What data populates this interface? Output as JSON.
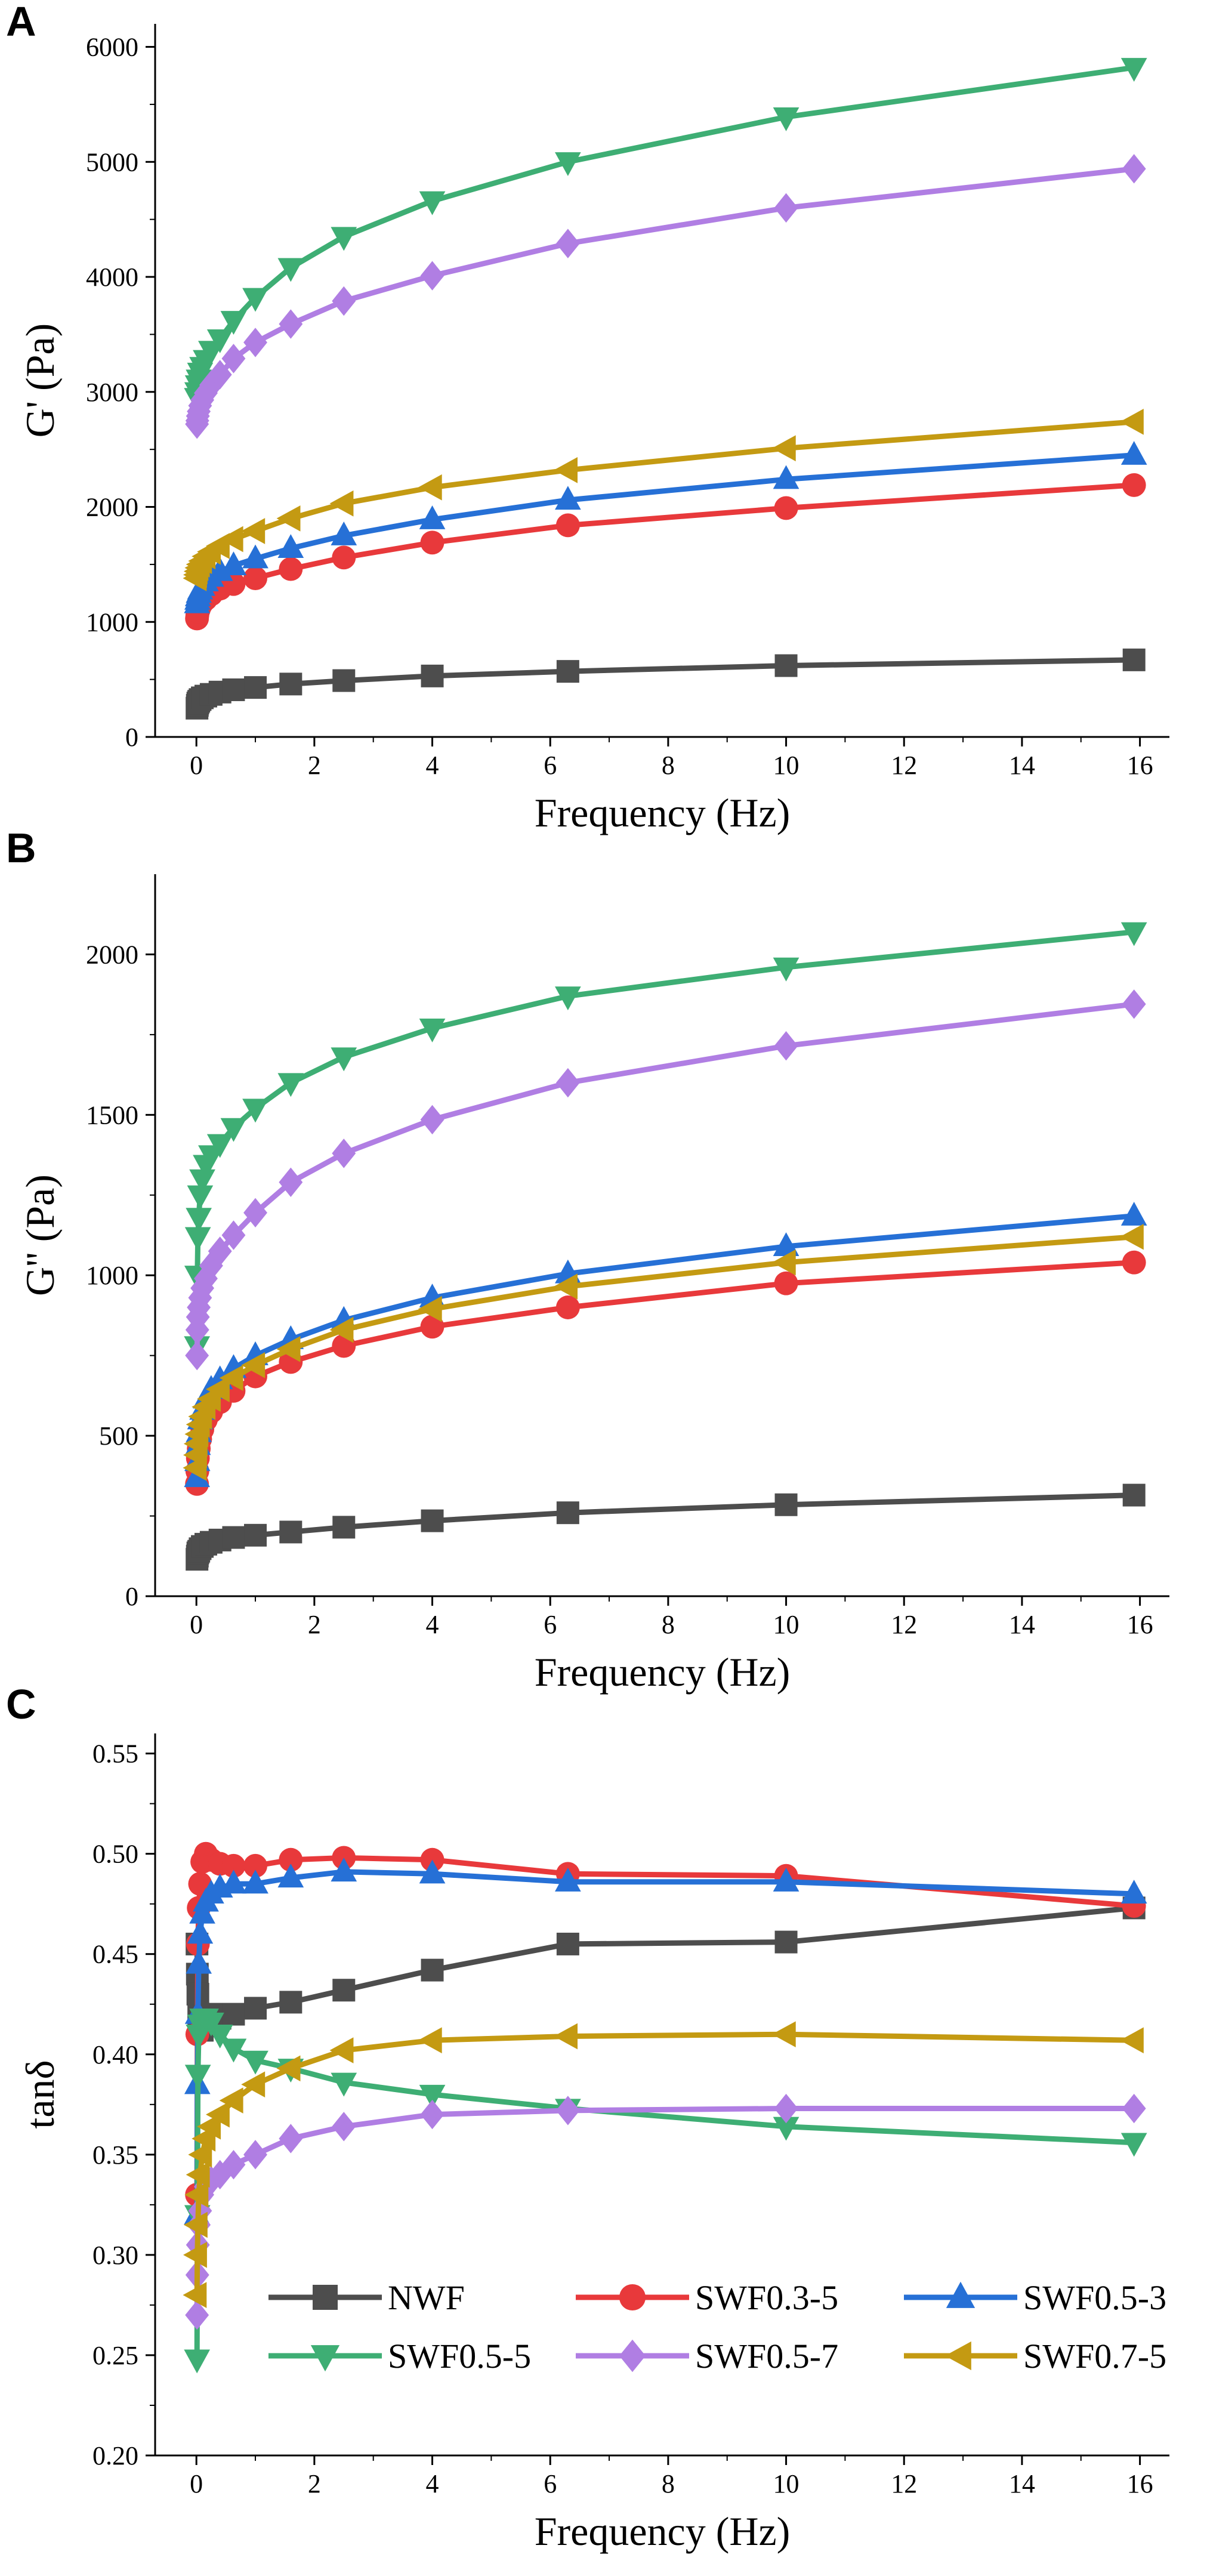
{
  "series_styles": [
    {
      "name": "NWF",
      "color": "#4d4d4d",
      "marker": "square"
    },
    {
      "name": "SWF0.3-5",
      "color": "#e8393b",
      "marker": "circle"
    },
    {
      "name": "SWF0.5-3",
      "color": "#2670d6",
      "marker": "triangle-up"
    },
    {
      "name": "SWF0.5-5",
      "color": "#3eae74",
      "marker": "triangle-down"
    },
    {
      "name": "SWF0.5-7",
      "color": "#b07ee3",
      "marker": "diamond"
    },
    {
      "name": "SWF0.7-5",
      "color": "#c49a12",
      "marker": "triangle-left"
    }
  ],
  "chart_data": [
    {
      "type": "line",
      "panel": "A",
      "xlabel": "Frequency (Hz)",
      "ylabel": "G' (Pa)",
      "xlim": [
        -0.7,
        16.5
      ],
      "ylim": [
        0,
        6200
      ],
      "xticks": [
        0,
        2,
        4,
        6,
        8,
        10,
        12,
        14,
        16
      ],
      "xtick_labels": [
        "0",
        "2",
        "4",
        "6",
        "8",
        "10",
        "12",
        "14",
        "16"
      ],
      "yticks": [
        0,
        1000,
        2000,
        3000,
        4000,
        5000,
        6000
      ],
      "ytick_labels": [
        "0",
        "1000",
        "2000",
        "3000",
        "4000",
        "5000",
        "6000"
      ],
      "x": [
        0.01,
        0.016,
        0.025,
        0.04,
        0.063,
        0.1,
        0.16,
        0.25,
        0.4,
        0.63,
        1.0,
        1.6,
        2.5,
        4.0,
        6.3,
        10.0,
        15.9
      ],
      "series": [
        {
          "name": "NWF",
          "values": [
            250,
            275,
            295,
            310,
            325,
            340,
            355,
            370,
            390,
            410,
            430,
            460,
            490,
            530,
            570,
            620,
            670
          ]
        },
        {
          "name": "SWF0.3-5",
          "values": [
            1030,
            1060,
            1090,
            1110,
            1140,
            1170,
            1200,
            1240,
            1290,
            1330,
            1380,
            1460,
            1560,
            1690,
            1840,
            1990,
            2190
          ]
        },
        {
          "name": "SWF0.5-3",
          "values": [
            1160,
            1190,
            1220,
            1250,
            1280,
            1310,
            1350,
            1390,
            1440,
            1490,
            1550,
            1640,
            1750,
            1890,
            2060,
            2240,
            2450
          ]
        },
        {
          "name": "SWF0.5-5",
          "values": [
            2950,
            3000,
            3060,
            3110,
            3170,
            3220,
            3280,
            3360,
            3460,
            3620,
            3820,
            4080,
            4350,
            4660,
            5000,
            5390,
            5820
          ]
        },
        {
          "name": "SWF0.5-7",
          "values": [
            2720,
            2750,
            2790,
            2830,
            2880,
            2930,
            2990,
            3060,
            3150,
            3290,
            3430,
            3590,
            3790,
            4010,
            4290,
            4600,
            4940
          ]
        },
        {
          "name": "SWF0.7-5",
          "values": [
            1380,
            1410,
            1440,
            1470,
            1500,
            1530,
            1570,
            1610,
            1660,
            1720,
            1790,
            1900,
            2030,
            2170,
            2320,
            2510,
            2740
          ]
        }
      ]
    },
    {
      "type": "line",
      "panel": "B",
      "xlabel": "Frequency (Hz)",
      "ylabel": "G'' (Pa)",
      "xlim": [
        -0.7,
        16.5
      ],
      "ylim": [
        0,
        2250
      ],
      "xticks": [
        0,
        2,
        4,
        6,
        8,
        10,
        12,
        14,
        16
      ],
      "xtick_labels": [
        "0",
        "2",
        "4",
        "6",
        "8",
        "10",
        "12",
        "14",
        "16"
      ],
      "yticks": [
        0,
        500,
        1000,
        1500,
        2000
      ],
      "ytick_labels": [
        "0",
        "500",
        "1000",
        "1500",
        "2000"
      ],
      "x": [
        0.01,
        0.016,
        0.025,
        0.04,
        0.063,
        0.1,
        0.16,
        0.25,
        0.4,
        0.63,
        1.0,
        1.6,
        2.5,
        4.0,
        6.3,
        10.0,
        15.9
      ],
      "series": [
        {
          "name": "NWF",
          "values": [
            115,
            125,
            135,
            140,
            148,
            155,
            162,
            168,
            175,
            183,
            190,
            200,
            215,
            235,
            260,
            285,
            315
          ]
        },
        {
          "name": "SWF0.3-5",
          "values": [
            350,
            390,
            430,
            460,
            490,
            520,
            550,
            575,
            605,
            640,
            685,
            730,
            780,
            840,
            900,
            975,
            1040
          ]
        },
        {
          "name": "SWF0.5-3",
          "values": [
            370,
            420,
            470,
            510,
            550,
            580,
            615,
            645,
            675,
            710,
            750,
            800,
            860,
            930,
            1005,
            1090,
            1185
          ]
        },
        {
          "name": "SWF0.5-5",
          "values": [
            780,
            1000,
            1120,
            1180,
            1250,
            1300,
            1345,
            1375,
            1410,
            1460,
            1520,
            1600,
            1680,
            1770,
            1870,
            1960,
            2070
          ]
        },
        {
          "name": "SWF0.5-7",
          "values": [
            750,
            830,
            870,
            900,
            930,
            960,
            990,
            1030,
            1075,
            1125,
            1195,
            1290,
            1380,
            1485,
            1600,
            1715,
            1845
          ]
        },
        {
          "name": "SWF0.7-5",
          "values": [
            400,
            440,
            475,
            505,
            535,
            560,
            590,
            615,
            645,
            680,
            720,
            770,
            830,
            895,
            965,
            1040,
            1120
          ]
        }
      ]
    },
    {
      "type": "line",
      "panel": "C",
      "xlabel": "Frequency (Hz)",
      "ylabel": "tanδ",
      "xlim": [
        -0.7,
        16.5
      ],
      "ylim": [
        0.2,
        0.56
      ],
      "xticks": [
        0,
        2,
        4,
        6,
        8,
        10,
        12,
        14,
        16
      ],
      "xtick_labels": [
        "0",
        "2",
        "4",
        "6",
        "8",
        "10",
        "12",
        "14",
        "16"
      ],
      "yticks": [
        0.2,
        0.25,
        0.3,
        0.35,
        0.4,
        0.45,
        0.5,
        0.55
      ],
      "ytick_labels": [
        "0.20",
        "0.25",
        "0.30",
        "0.35",
        "0.40",
        "0.45",
        "0.50",
        "0.55"
      ],
      "x": [
        0.01,
        0.016,
        0.025,
        0.04,
        0.063,
        0.1,
        0.16,
        0.25,
        0.4,
        0.63,
        1.0,
        1.6,
        2.5,
        4.0,
        6.3,
        10.0,
        15.9
      ],
      "series": [
        {
          "name": "NWF",
          "values": [
            0.455,
            0.44,
            0.43,
            0.42,
            0.415,
            0.412,
            0.418,
            0.42,
            0.418,
            0.42,
            0.423,
            0.426,
            0.432,
            0.442,
            0.455,
            0.456,
            0.473
          ]
        },
        {
          "name": "SWF0.3-5",
          "values": [
            0.33,
            0.41,
            0.455,
            0.473,
            0.485,
            0.496,
            0.5,
            0.497,
            0.495,
            0.494,
            0.494,
            0.497,
            0.498,
            0.497,
            0.49,
            0.489,
            0.474
          ]
        },
        {
          "name": "SWF0.5-3",
          "values": [
            0.32,
            0.385,
            0.42,
            0.445,
            0.46,
            0.47,
            0.476,
            0.48,
            0.483,
            0.485,
            0.485,
            0.488,
            0.491,
            0.49,
            0.486,
            0.486,
            0.48
          ]
        },
        {
          "name": "SWF0.5-5",
          "values": [
            0.248,
            0.32,
            0.39,
            0.41,
            0.415,
            0.418,
            0.418,
            0.416,
            0.41,
            0.403,
            0.397,
            0.393,
            0.386,
            0.38,
            0.373,
            0.364,
            0.356
          ]
        },
        {
          "name": "SWF0.5-7",
          "values": [
            0.27,
            0.29,
            0.305,
            0.315,
            0.322,
            0.33,
            0.334,
            0.337,
            0.34,
            0.345,
            0.35,
            0.358,
            0.364,
            0.37,
            0.372,
            0.373,
            0.373
          ]
        },
        {
          "name": "SWF0.7-5",
          "values": [
            0.28,
            0.3,
            0.315,
            0.33,
            0.34,
            0.35,
            0.358,
            0.364,
            0.37,
            0.377,
            0.385,
            0.393,
            0.402,
            0.407,
            0.409,
            0.41,
            0.407
          ]
        }
      ],
      "legend": {
        "placement": "bottom-right",
        "entries": [
          "NWF",
          "SWF0.3-5",
          "SWF0.5-3",
          "SWF0.5-5",
          "SWF0.5-7",
          "SWF0.7-5"
        ]
      }
    }
  ]
}
